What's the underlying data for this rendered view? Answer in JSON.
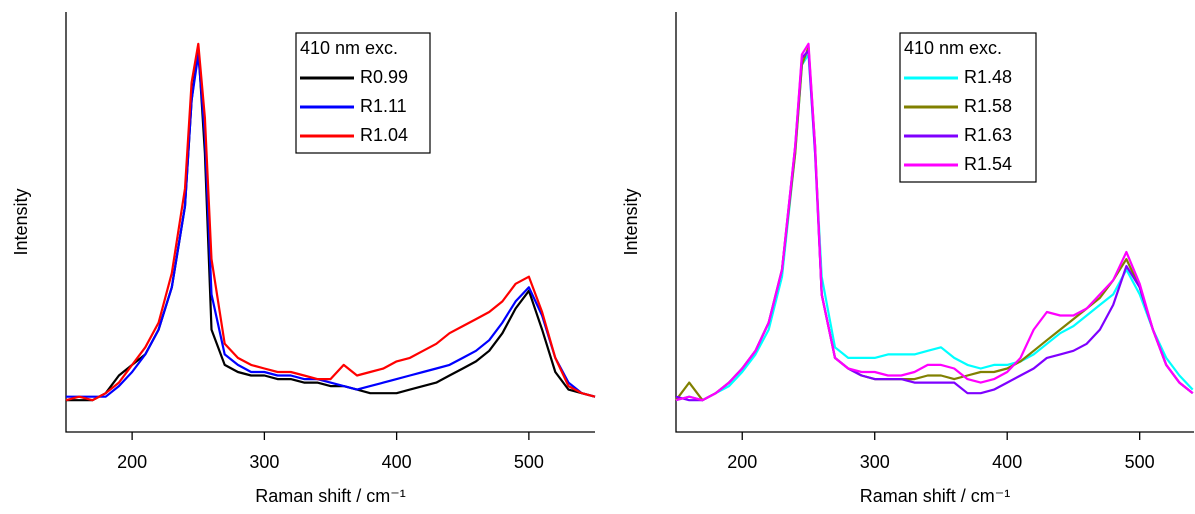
{
  "chart_data": [
    {
      "type": "line",
      "xlabel": "Raman shift / cm⁻¹",
      "ylabel": "Intensity",
      "legend_title": "410 nm exc.",
      "xlim": [
        150,
        550
      ],
      "ylim": [
        -0.09,
        1.1
      ],
      "xticks": [
        200,
        300,
        400,
        500
      ],
      "x": [
        150,
        160,
        170,
        180,
        190,
        200,
        210,
        220,
        230,
        240,
        245,
        250,
        255,
        260,
        270,
        280,
        290,
        300,
        310,
        320,
        330,
        340,
        350,
        360,
        370,
        380,
        390,
        400,
        410,
        420,
        430,
        440,
        450,
        460,
        470,
        480,
        490,
        500,
        510,
        520,
        530,
        540,
        550
      ],
      "series": [
        {
          "name": "R0.99",
          "color": "#000000",
          "values": [
            0.0,
            0.0,
            0.0,
            0.02,
            0.07,
            0.1,
            0.13,
            0.2,
            0.32,
            0.55,
            0.85,
            1.0,
            0.7,
            0.2,
            0.1,
            0.08,
            0.07,
            0.07,
            0.06,
            0.06,
            0.05,
            0.05,
            0.04,
            0.04,
            0.03,
            0.02,
            0.02,
            0.02,
            0.03,
            0.04,
            0.05,
            0.07,
            0.09,
            0.11,
            0.14,
            0.19,
            0.26,
            0.31,
            0.2,
            0.08,
            0.03,
            0.02,
            0.01
          ]
        },
        {
          "name": "R1.11",
          "color": "#0000ff",
          "values": [
            0.01,
            0.01,
            0.01,
            0.01,
            0.04,
            0.08,
            0.13,
            0.2,
            0.32,
            0.55,
            0.85,
            0.98,
            0.75,
            0.3,
            0.13,
            0.1,
            0.08,
            0.08,
            0.07,
            0.07,
            0.06,
            0.06,
            0.05,
            0.04,
            0.03,
            0.04,
            0.05,
            0.06,
            0.07,
            0.08,
            0.09,
            0.1,
            0.12,
            0.14,
            0.17,
            0.22,
            0.28,
            0.32,
            0.24,
            0.12,
            0.05,
            0.02,
            0.01
          ]
        },
        {
          "name": "R1.04",
          "color": "#ff0000",
          "values": [
            0.0,
            0.01,
            0.0,
            0.02,
            0.05,
            0.1,
            0.15,
            0.22,
            0.36,
            0.6,
            0.9,
            1.01,
            0.8,
            0.4,
            0.16,
            0.12,
            0.1,
            0.09,
            0.08,
            0.08,
            0.07,
            0.06,
            0.06,
            0.1,
            0.07,
            0.08,
            0.09,
            0.11,
            0.12,
            0.14,
            0.16,
            0.19,
            0.21,
            0.23,
            0.25,
            0.28,
            0.33,
            0.35,
            0.25,
            0.12,
            0.04,
            0.02,
            0.01
          ]
        }
      ]
    },
    {
      "type": "line",
      "xlabel": "Raman shift / cm⁻¹",
      "ylabel": "Intensity",
      "legend_title": "410 nm exc.",
      "xlim": [
        150,
        541
      ],
      "ylim": [
        -0.09,
        1.1
      ],
      "xticks": [
        200,
        300,
        400,
        500
      ],
      "x": [
        150,
        160,
        170,
        180,
        190,
        200,
        210,
        220,
        230,
        240,
        245,
        250,
        255,
        260,
        270,
        280,
        290,
        300,
        310,
        320,
        330,
        340,
        350,
        360,
        370,
        380,
        390,
        400,
        410,
        420,
        430,
        440,
        450,
        460,
        470,
        480,
        490,
        500,
        510,
        520,
        530,
        540
      ],
      "series": [
        {
          "name": "R1.48",
          "color": "#00ffff",
          "values": [
            0.0,
            0.01,
            0.0,
            0.02,
            0.04,
            0.08,
            0.13,
            0.2,
            0.35,
            0.7,
            0.95,
            0.98,
            0.7,
            0.35,
            0.15,
            0.12,
            0.12,
            0.12,
            0.13,
            0.13,
            0.13,
            0.14,
            0.15,
            0.12,
            0.1,
            0.09,
            0.1,
            0.1,
            0.11,
            0.13,
            0.16,
            0.19,
            0.21,
            0.24,
            0.27,
            0.3,
            0.37,
            0.3,
            0.2,
            0.12,
            0.07,
            0.03
          ]
        },
        {
          "name": "R1.58",
          "color": "#808000",
          "values": [
            0.0,
            0.05,
            0.0,
            0.02,
            0.05,
            0.09,
            0.14,
            0.22,
            0.37,
            0.7,
            0.95,
            1.0,
            0.72,
            0.3,
            0.12,
            0.09,
            0.07,
            0.06,
            0.06,
            0.06,
            0.06,
            0.07,
            0.07,
            0.06,
            0.07,
            0.08,
            0.08,
            0.09,
            0.11,
            0.14,
            0.17,
            0.2,
            0.23,
            0.26,
            0.29,
            0.34,
            0.4,
            0.32,
            0.2,
            0.1,
            0.05,
            0.02
          ]
        },
        {
          "name": "R1.63",
          "color": "#7f00ff",
          "values": [
            0.01,
            0.0,
            0.0,
            0.02,
            0.05,
            0.09,
            0.14,
            0.22,
            0.37,
            0.72,
            0.97,
            0.99,
            0.7,
            0.3,
            0.12,
            0.09,
            0.07,
            0.06,
            0.06,
            0.06,
            0.05,
            0.05,
            0.05,
            0.05,
            0.02,
            0.02,
            0.03,
            0.05,
            0.07,
            0.09,
            0.12,
            0.13,
            0.14,
            0.16,
            0.2,
            0.27,
            0.38,
            0.32,
            0.2,
            0.1,
            0.05,
            0.02
          ]
        },
        {
          "name": "R1.54",
          "color": "#ff00ff",
          "values": [
            0.0,
            0.01,
            0.0,
            0.02,
            0.05,
            0.09,
            0.14,
            0.22,
            0.37,
            0.72,
            0.98,
            1.01,
            0.72,
            0.3,
            0.12,
            0.09,
            0.08,
            0.08,
            0.07,
            0.07,
            0.08,
            0.1,
            0.1,
            0.09,
            0.06,
            0.05,
            0.06,
            0.08,
            0.12,
            0.2,
            0.25,
            0.24,
            0.24,
            0.26,
            0.3,
            0.34,
            0.42,
            0.33,
            0.2,
            0.1,
            0.05,
            0.02
          ]
        }
      ]
    }
  ]
}
